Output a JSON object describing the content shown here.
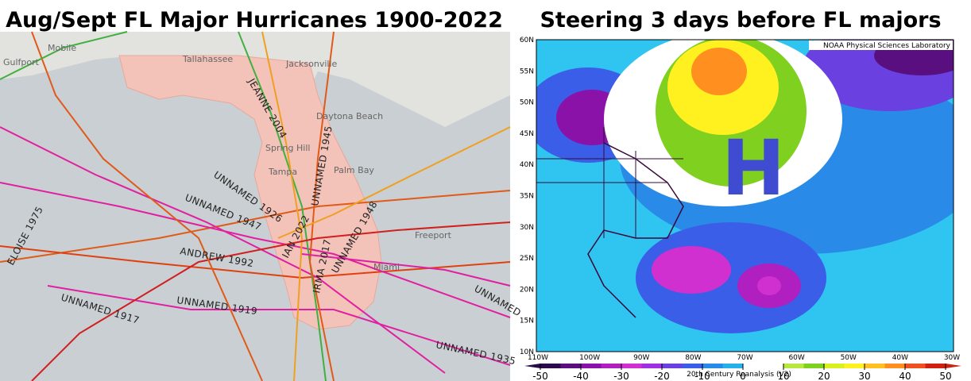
{
  "left_map": {
    "title": "Aug/Sept FL Major Hurricanes 1900-2022",
    "places": [
      "Gulfport",
      "Mobile",
      "Tallahassee",
      "Jacksonville",
      "Daytona Beach",
      "Spring Hill",
      "Tampa",
      "Palm Bay",
      "Freeport",
      "Miami"
    ],
    "storms": [
      "JEANNE 2004",
      "UNNAMED 1945",
      "UNNAMED 1926",
      "UNNAMED 1947",
      "ELOISE 1975",
      "ANDREW 1992",
      "IAN 2022",
      "IRMA 2017",
      "UNNAMED 1948",
      "UNNAMED 1919",
      "UNNAMED 1917",
      "UNNAMED 1935",
      "UNNAMED"
    ]
  },
  "right_map": {
    "title": "Steering 3 days before FL majors",
    "credit": "NOAA Physical Sciences Laboratory",
    "high_label": "H",
    "lat_labels": [
      "60N",
      "55N",
      "50N",
      "45N",
      "40N",
      "35N",
      "30N",
      "25N",
      "20N",
      "15N",
      "10N"
    ],
    "lon_labels": [
      "110W",
      "100W",
      "90W",
      "80W",
      "70W",
      "60W",
      "50W",
      "40W",
      "30W"
    ],
    "colorbar": {
      "ticks": [
        -50,
        -40,
        -30,
        -20,
        -10,
        0,
        10,
        20,
        30,
        40,
        50
      ],
      "colors": [
        "#2a0a4a",
        "#5a0f80",
        "#8a12a8",
        "#b020c0",
        "#d030d0",
        "#a030e0",
        "#6a40e0",
        "#3a5ee8",
        "#2a8ae8",
        "#28b0ea",
        "#ffffff",
        "#ffffff",
        "#b8e840",
        "#80d020",
        "#d8f020",
        "#fff020",
        "#ffc020",
        "#ff9020",
        "#f05020",
        "#d02010"
      ],
      "caption": "20th Century Reanalysis (V2)"
    }
  }
}
